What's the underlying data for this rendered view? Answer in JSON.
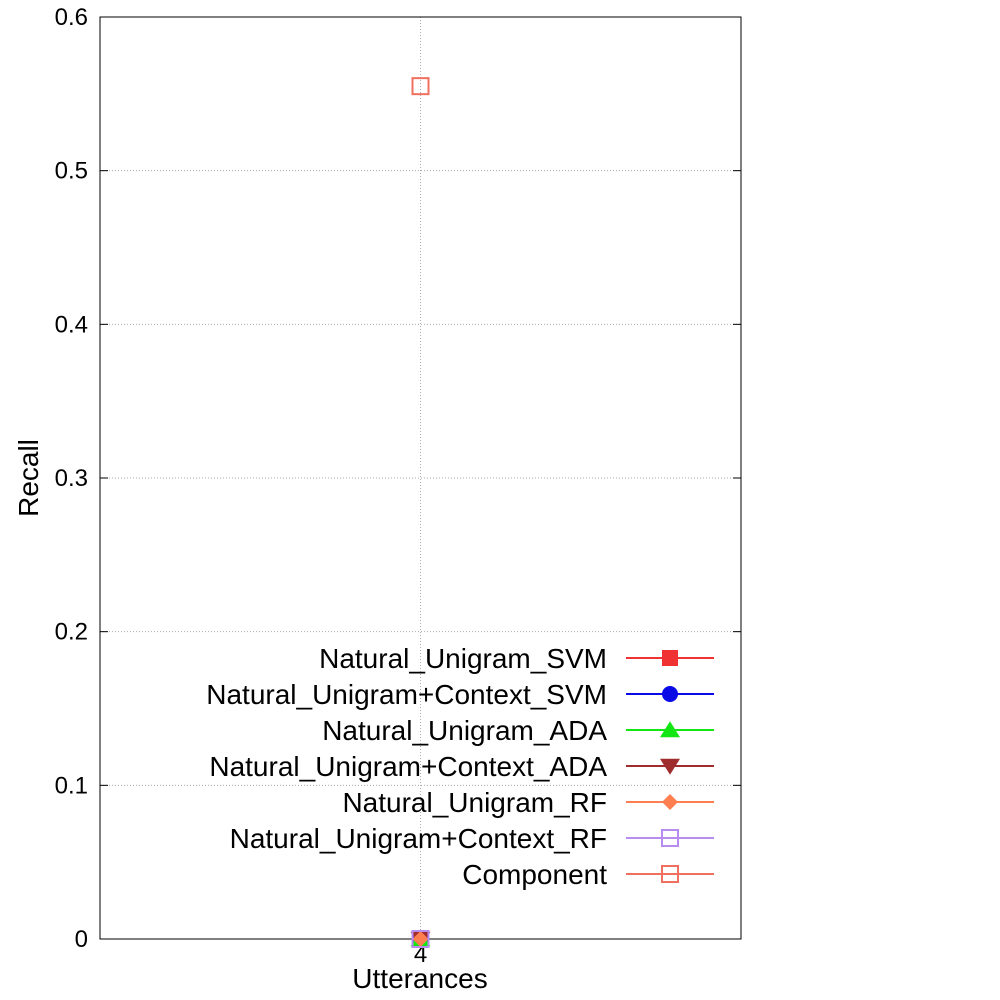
{
  "chart_data": {
    "type": "scatter",
    "xlabel": "Utterances",
    "ylabel": "Recall",
    "categories": [
      "4"
    ],
    "ylim": [
      0,
      0.6
    ],
    "yticks": [
      "0",
      "0.1",
      "0.2",
      "0.3",
      "0.4",
      "0.5",
      "0.6"
    ],
    "grid": true,
    "legend_position": "bottom-right",
    "series": [
      {
        "name": "Natural_Unigram_SVM",
        "values": [
          0
        ],
        "color": "#f03232",
        "marker": "square-filled"
      },
      {
        "name": "Natural_Unigram+Context_SVM",
        "values": [
          0
        ],
        "color": "#0a0ae6",
        "marker": "circle-filled"
      },
      {
        "name": "Natural_Unigram_ADA",
        "values": [
          0
        ],
        "color": "#14e614",
        "marker": "triangle-up-filled"
      },
      {
        "name": "Natural_Unigram+Context_ADA",
        "values": [
          0
        ],
        "color": "#a02d2d",
        "marker": "triangle-down-filled"
      },
      {
        "name": "Natural_Unigram_RF",
        "values": [
          0
        ],
        "color": "#ff7f50",
        "marker": "diamond-filled"
      },
      {
        "name": "Natural_Unigram+Context_RF",
        "values": [
          0
        ],
        "color": "#b68cf0",
        "marker": "square-open"
      },
      {
        "name": "Component",
        "values": [
          0.555
        ],
        "color": "#f07060",
        "marker": "square-open"
      }
    ]
  }
}
